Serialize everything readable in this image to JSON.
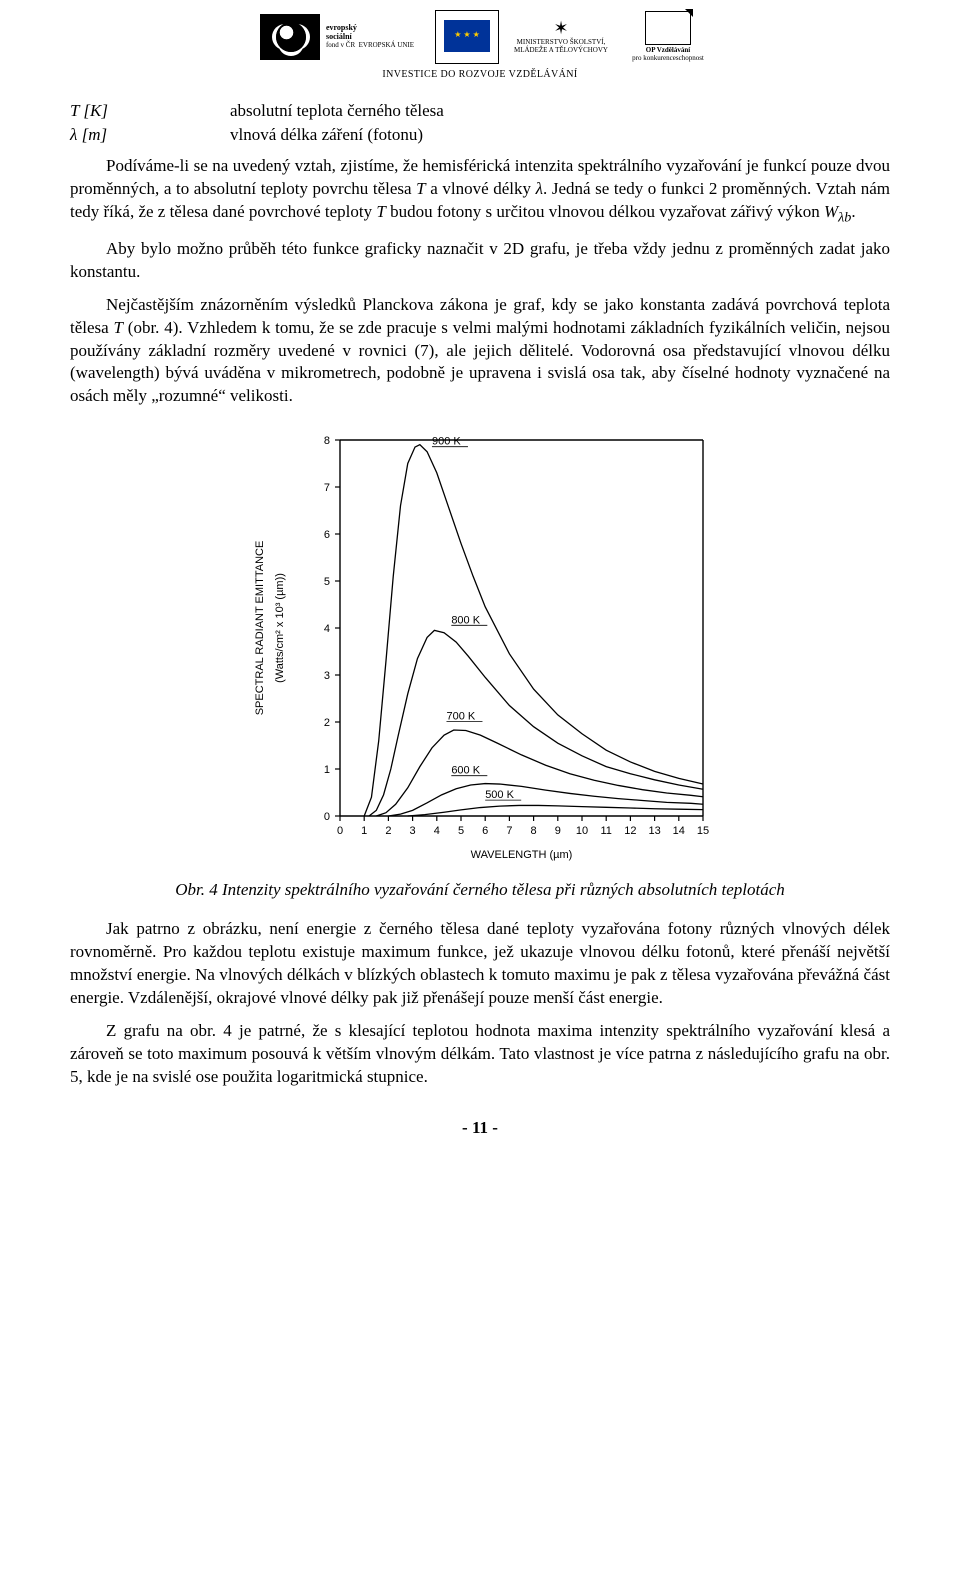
{
  "logos": {
    "esf_line1": "evropský",
    "esf_line2": "sociální",
    "esf_line3": "fond v ČR",
    "esf_line4": "EVROPSKÁ UNIE",
    "ms_line1": "MINISTERSTVO ŠKOLSTVÍ,",
    "ms_line2": "MLÁDEŽE A TĚLOVÝCHOVY",
    "op_line1": "OP Vzdělávání",
    "op_line2": "pro konkurenceschopnost",
    "sub": "INVESTICE DO ROZVOJE VZDĚLÁVÁNÍ"
  },
  "vars": {
    "t_sym": "T [K]",
    "t_desc": "absolutní teplota černého tělesa",
    "l_sym": "λ [m]",
    "l_desc": "vlnová délka záření (fotonu)"
  },
  "p1a": "Podíváme-li se na uvedený vztah, zjistíme, že hemisférická intenzita spektrálního vyzařování je funkcí pouze dvou proměnných, a to absolutní teploty povrchu tělesa ",
  "p1b": " a vlnové délky ",
  "p1c": ". Jedná se tedy o funkci 2 proměnných. Vztah nám tedy říká, že z tělesa dané povrchové teploty ",
  "p1d": " budou fotony s určitou vlnovou délkou vyzařovat zářivý výkon ",
  "p1e": ".",
  "p2": "Aby bylo možno průběh této funkce graficky naznačit v 2D grafu, je třeba vždy jednu z proměnných zadat jako konstantu.",
  "p3a": "Nejčastějším znázorněním výsledků Planckova zákona je graf, kdy se jako konstanta zadává povrchová teplota tělesa ",
  "p3b": " (obr. 4). Vzhledem k tomu, že se zde pracuje s velmi malými hodnotami základních fyzikálních veličin, nejsou používány základní rozměry uvedené v rovnici (7), ale jejich dělitelé. Vodorovná osa představující vlnovou délku (wavelength) bývá uváděna v mikrometrech, podobně je upravena i svislá osa tak, aby číselné hodnoty vyznačené na osách měly „rozumné“ velikosti.",
  "fig_caption": "Obr. 4 Intenzity spektrálního vyzařování černého tělesa při různých absolutních teplotách",
  "p4": "Jak patrno z obrázku, není energie z černého tělesa dané teploty vyzařována fotony různých vlnových délek rovnoměrně. Pro každou teplotu existuje maximum funkce, jež ukazuje vlnovou délku fotonů, které přenáší největší množství energie. Na vlnových délkách v blízkých oblastech k tomuto maximu je pak z tělesa vyzařována převážná část energie. Vzdálenější, okrajové vlnové délky pak již přenášejí pouze menší část energie.",
  "p5": "Z grafu na obr. 4 je patrné, že s klesající teplotou hodnota maxima intenzity spektrálního vyzařování klesá a zároveň se toto maximum posouvá k větším vlnovým délkám. Tato vlastnost je více patrna z následujícího grafu na obr. 5, kde je na svislé ose použita logaritmická stupnice.",
  "page_num": "- 11 -",
  "chart": {
    "type": "line",
    "xlabel": "WAVELENGTH (µm)",
    "ylabel_line1": "SPECTRAL RADIANT EMITTANCE",
    "ylabel_line2": "(Watts/cm² x 10³ (µm))",
    "xlim": [
      0,
      15
    ],
    "ylim": [
      0,
      8
    ],
    "xticks": [
      0,
      1,
      2,
      3,
      4,
      5,
      6,
      7,
      8,
      9,
      10,
      11,
      12,
      13,
      14,
      15
    ],
    "yticks": [
      0,
      1,
      2,
      3,
      4,
      5,
      6,
      7,
      8
    ],
    "line_color": "#000000",
    "axis_color": "#000000",
    "background": "#ffffff",
    "line_width": 1.3,
    "label_fontsize": 11,
    "tick_fontsize": 11,
    "series": [
      {
        "label": "900 K",
        "label_x": 3.8,
        "label_y": 7.9,
        "points": [
          [
            1.0,
            0.0
          ],
          [
            1.3,
            0.4
          ],
          [
            1.6,
            1.6
          ],
          [
            1.9,
            3.3
          ],
          [
            2.2,
            5.1
          ],
          [
            2.5,
            6.6
          ],
          [
            2.8,
            7.5
          ],
          [
            3.1,
            7.85
          ],
          [
            3.3,
            7.9
          ],
          [
            3.6,
            7.75
          ],
          [
            4.0,
            7.3
          ],
          [
            4.5,
            6.55
          ],
          [
            5.0,
            5.8
          ],
          [
            5.5,
            5.1
          ],
          [
            6.0,
            4.45
          ],
          [
            7.0,
            3.45
          ],
          [
            8.0,
            2.7
          ],
          [
            9.0,
            2.15
          ],
          [
            10.0,
            1.75
          ],
          [
            11.0,
            1.4
          ],
          [
            12.0,
            1.15
          ],
          [
            13.0,
            0.95
          ],
          [
            14.0,
            0.8
          ],
          [
            15.0,
            0.68
          ]
        ]
      },
      {
        "label": "800 K",
        "label_x": 4.6,
        "label_y": 4.1,
        "points": [
          [
            1.2,
            0.0
          ],
          [
            1.5,
            0.12
          ],
          [
            1.8,
            0.45
          ],
          [
            2.1,
            1.0
          ],
          [
            2.4,
            1.7
          ],
          [
            2.8,
            2.6
          ],
          [
            3.2,
            3.35
          ],
          [
            3.6,
            3.8
          ],
          [
            3.9,
            3.95
          ],
          [
            4.3,
            3.9
          ],
          [
            4.8,
            3.7
          ],
          [
            5.3,
            3.4
          ],
          [
            6.0,
            2.95
          ],
          [
            7.0,
            2.35
          ],
          [
            8.0,
            1.9
          ],
          [
            9.0,
            1.55
          ],
          [
            10.0,
            1.28
          ],
          [
            11.0,
            1.05
          ],
          [
            12.0,
            0.9
          ],
          [
            13.0,
            0.77
          ],
          [
            14.0,
            0.66
          ],
          [
            15.0,
            0.57
          ]
        ]
      },
      {
        "label": "700 K",
        "label_x": 4.4,
        "label_y": 2.05,
        "points": [
          [
            1.5,
            0.0
          ],
          [
            1.9,
            0.07
          ],
          [
            2.3,
            0.25
          ],
          [
            2.8,
            0.6
          ],
          [
            3.3,
            1.05
          ],
          [
            3.8,
            1.45
          ],
          [
            4.3,
            1.72
          ],
          [
            4.7,
            1.83
          ],
          [
            5.2,
            1.82
          ],
          [
            5.8,
            1.72
          ],
          [
            6.5,
            1.55
          ],
          [
            7.5,
            1.3
          ],
          [
            8.5,
            1.08
          ],
          [
            9.5,
            0.9
          ],
          [
            10.5,
            0.76
          ],
          [
            11.5,
            0.65
          ],
          [
            12.5,
            0.56
          ],
          [
            13.5,
            0.49
          ],
          [
            14.5,
            0.44
          ],
          [
            15.0,
            0.41
          ]
        ]
      },
      {
        "label": "600 K",
        "label_x": 4.6,
        "label_y": 0.9,
        "points": [
          [
            2.0,
            0.0
          ],
          [
            2.5,
            0.04
          ],
          [
            3.0,
            0.12
          ],
          [
            3.6,
            0.28
          ],
          [
            4.2,
            0.45
          ],
          [
            4.8,
            0.58
          ],
          [
            5.4,
            0.66
          ],
          [
            6.0,
            0.69
          ],
          [
            6.6,
            0.68
          ],
          [
            7.5,
            0.63
          ],
          [
            8.5,
            0.55
          ],
          [
            9.5,
            0.48
          ],
          [
            10.5,
            0.42
          ],
          [
            11.5,
            0.37
          ],
          [
            12.5,
            0.33
          ],
          [
            13.5,
            0.29
          ],
          [
            14.5,
            0.27
          ],
          [
            15.0,
            0.25
          ]
        ]
      },
      {
        "label": "500 K",
        "label_x": 6.0,
        "label_y": 0.38,
        "points": [
          [
            2.8,
            0.0
          ],
          [
            3.5,
            0.03
          ],
          [
            4.3,
            0.08
          ],
          [
            5.0,
            0.13
          ],
          [
            5.8,
            0.18
          ],
          [
            6.6,
            0.21
          ],
          [
            7.4,
            0.225
          ],
          [
            8.2,
            0.225
          ],
          [
            9.0,
            0.215
          ],
          [
            10.0,
            0.2
          ],
          [
            11.0,
            0.185
          ],
          [
            12.0,
            0.17
          ],
          [
            13.0,
            0.155
          ],
          [
            14.0,
            0.145
          ],
          [
            15.0,
            0.135
          ]
        ]
      }
    ]
  }
}
